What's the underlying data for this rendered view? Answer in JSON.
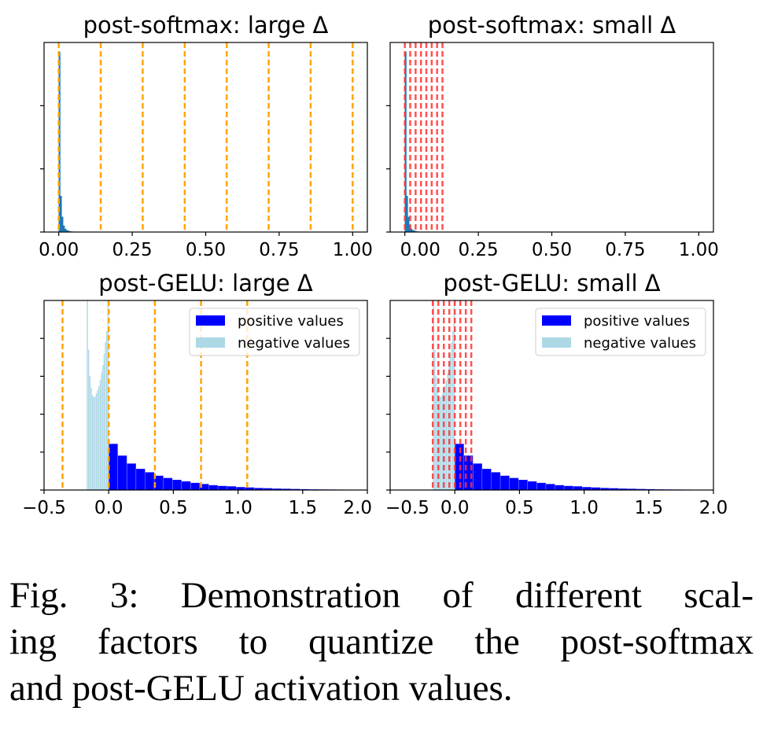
{
  "chart_data": [
    {
      "type": "bar",
      "title": "post-softmax: large Δ",
      "xlim": [
        -0.05,
        1.05
      ],
      "ylim": [
        0,
        3
      ],
      "xticks": [
        0,
        0.25,
        0.5,
        0.75,
        1.0
      ],
      "xtick_labels": [
        "0.00",
        "0.25",
        "0.50",
        "0.75",
        "1.00"
      ],
      "yticks": [
        0,
        1,
        2
      ],
      "bin_width": 0.005,
      "series": [
        {
          "color": "#1f77b4",
          "bins_start": 0.0,
          "values": [
            2.85,
            0.57,
            0.24,
            0.1,
            0.05,
            0.03,
            0.02,
            0.012,
            0.008,
            0.005,
            0.004,
            0.003,
            0.002
          ]
        }
      ],
      "vlines": {
        "color": "#ffa500",
        "x": [
          0,
          0.1429,
          0.2857,
          0.4286,
          0.5714,
          0.7143,
          0.8571,
          1.0
        ]
      }
    },
    {
      "type": "bar",
      "title": "post-softmax: small Δ",
      "xlim": [
        -0.05,
        1.05
      ],
      "ylim": [
        0,
        3
      ],
      "xticks": [
        0,
        0.25,
        0.5,
        0.75,
        1.0
      ],
      "xtick_labels": [
        "0.00",
        "0.25",
        "0.50",
        "0.75",
        "1.00"
      ],
      "yticks": [
        0,
        1,
        2
      ],
      "bin_width": 0.005,
      "series": [
        {
          "color": "#1f77b4",
          "bins_start": 0.0,
          "values": [
            2.85,
            0.57,
            0.24,
            0.1,
            0.05,
            0.03,
            0.02,
            0.012,
            0.008,
            0.005,
            0.004,
            0.003,
            0.002
          ]
        }
      ],
      "vlines": {
        "color": "#ff3333",
        "x": [
          0,
          0.0183,
          0.0366,
          0.0549,
          0.0731,
          0.0914,
          0.1097,
          0.128
        ]
      }
    },
    {
      "type": "bar",
      "title": "post-GELU: large Δ",
      "xlim": [
        -0.5,
        2.0
      ],
      "ylim": [
        0,
        5
      ],
      "xticks": [
        -0.5,
        0,
        0.5,
        1.0,
        1.5,
        2.0
      ],
      "xtick_labels": [
        "−0.5",
        "0.0",
        "0.5",
        "1.0",
        "1.5",
        "2.0"
      ],
      "yticks": [
        0,
        1,
        2,
        3,
        4
      ],
      "legend": {
        "position": "upper right",
        "entries": [
          "positive values",
          "negative values"
        ]
      },
      "series": [
        {
          "name": "positive values",
          "color": "#0000ff",
          "bins_start": 0.0,
          "bin_width": 0.0704,
          "values": [
            1.22,
            0.91,
            0.7,
            0.56,
            0.47,
            0.38,
            0.32,
            0.27,
            0.23,
            0.19,
            0.16,
            0.13,
            0.11,
            0.1,
            0.08,
            0.07,
            0.055,
            0.05,
            0.04,
            0.035,
            0.03,
            0.025,
            0.02,
            0.018,
            0.015,
            0.012,
            0.01
          ]
        },
        {
          "name": "negative values",
          "color": "#add8e6",
          "bins_start": -0.17,
          "bin_width": 0.01,
          "values": [
            5.5,
            3.7,
            3.0,
            2.7,
            2.5,
            2.45,
            2.47,
            2.55,
            2.65,
            2.75,
            2.9,
            3.1,
            3.3,
            3.6,
            3.9,
            4.2,
            5.5
          ]
        }
      ],
      "vlines": {
        "color": "#ffa500",
        "x": [
          -0.357,
          0,
          0.357,
          0.714,
          1.071
        ]
      }
    },
    {
      "type": "bar",
      "title": "post-GELU: small Δ",
      "xlim": [
        -0.5,
        2.0
      ],
      "ylim": [
        0,
        5
      ],
      "xticks": [
        -0.5,
        0,
        0.5,
        1.0,
        1.5,
        2.0
      ],
      "xtick_labels": [
        "−0.5",
        "0.0",
        "0.5",
        "1.0",
        "1.5",
        "2.0"
      ],
      "yticks": [
        0,
        1,
        2,
        3,
        4
      ],
      "legend": {
        "position": "upper right",
        "entries": [
          "positive values",
          "negative values"
        ]
      },
      "series": [
        {
          "name": "positive values",
          "color": "#0000ff",
          "bins_start": 0.0,
          "bin_width": 0.0704,
          "values": [
            1.22,
            0.91,
            0.7,
            0.56,
            0.47,
            0.38,
            0.32,
            0.27,
            0.23,
            0.19,
            0.16,
            0.13,
            0.11,
            0.1,
            0.08,
            0.07,
            0.055,
            0.05,
            0.04,
            0.035,
            0.03,
            0.025,
            0.02,
            0.018,
            0.015,
            0.012,
            0.01
          ]
        },
        {
          "name": "negative values",
          "color": "#add8e6",
          "bins_start": -0.17,
          "bin_width": 0.01,
          "values": [
            5.5,
            3.7,
            3.0,
            2.7,
            2.5,
            2.45,
            2.47,
            2.55,
            2.65,
            2.75,
            2.9,
            3.1,
            3.3,
            3.6,
            3.9,
            4.2,
            5.5
          ]
        }
      ],
      "vlines": {
        "color": "#ff3333",
        "x": [
          -0.17,
          -0.1275,
          -0.085,
          -0.0425,
          0,
          0.0425,
          0.085,
          0.1275
        ]
      }
    }
  ],
  "caption": {
    "lines": [
      "Fig. 3: Demonstration of different scal-",
      "ing factors to quantize the post-softmax",
      "and post-GELU activation values."
    ]
  }
}
